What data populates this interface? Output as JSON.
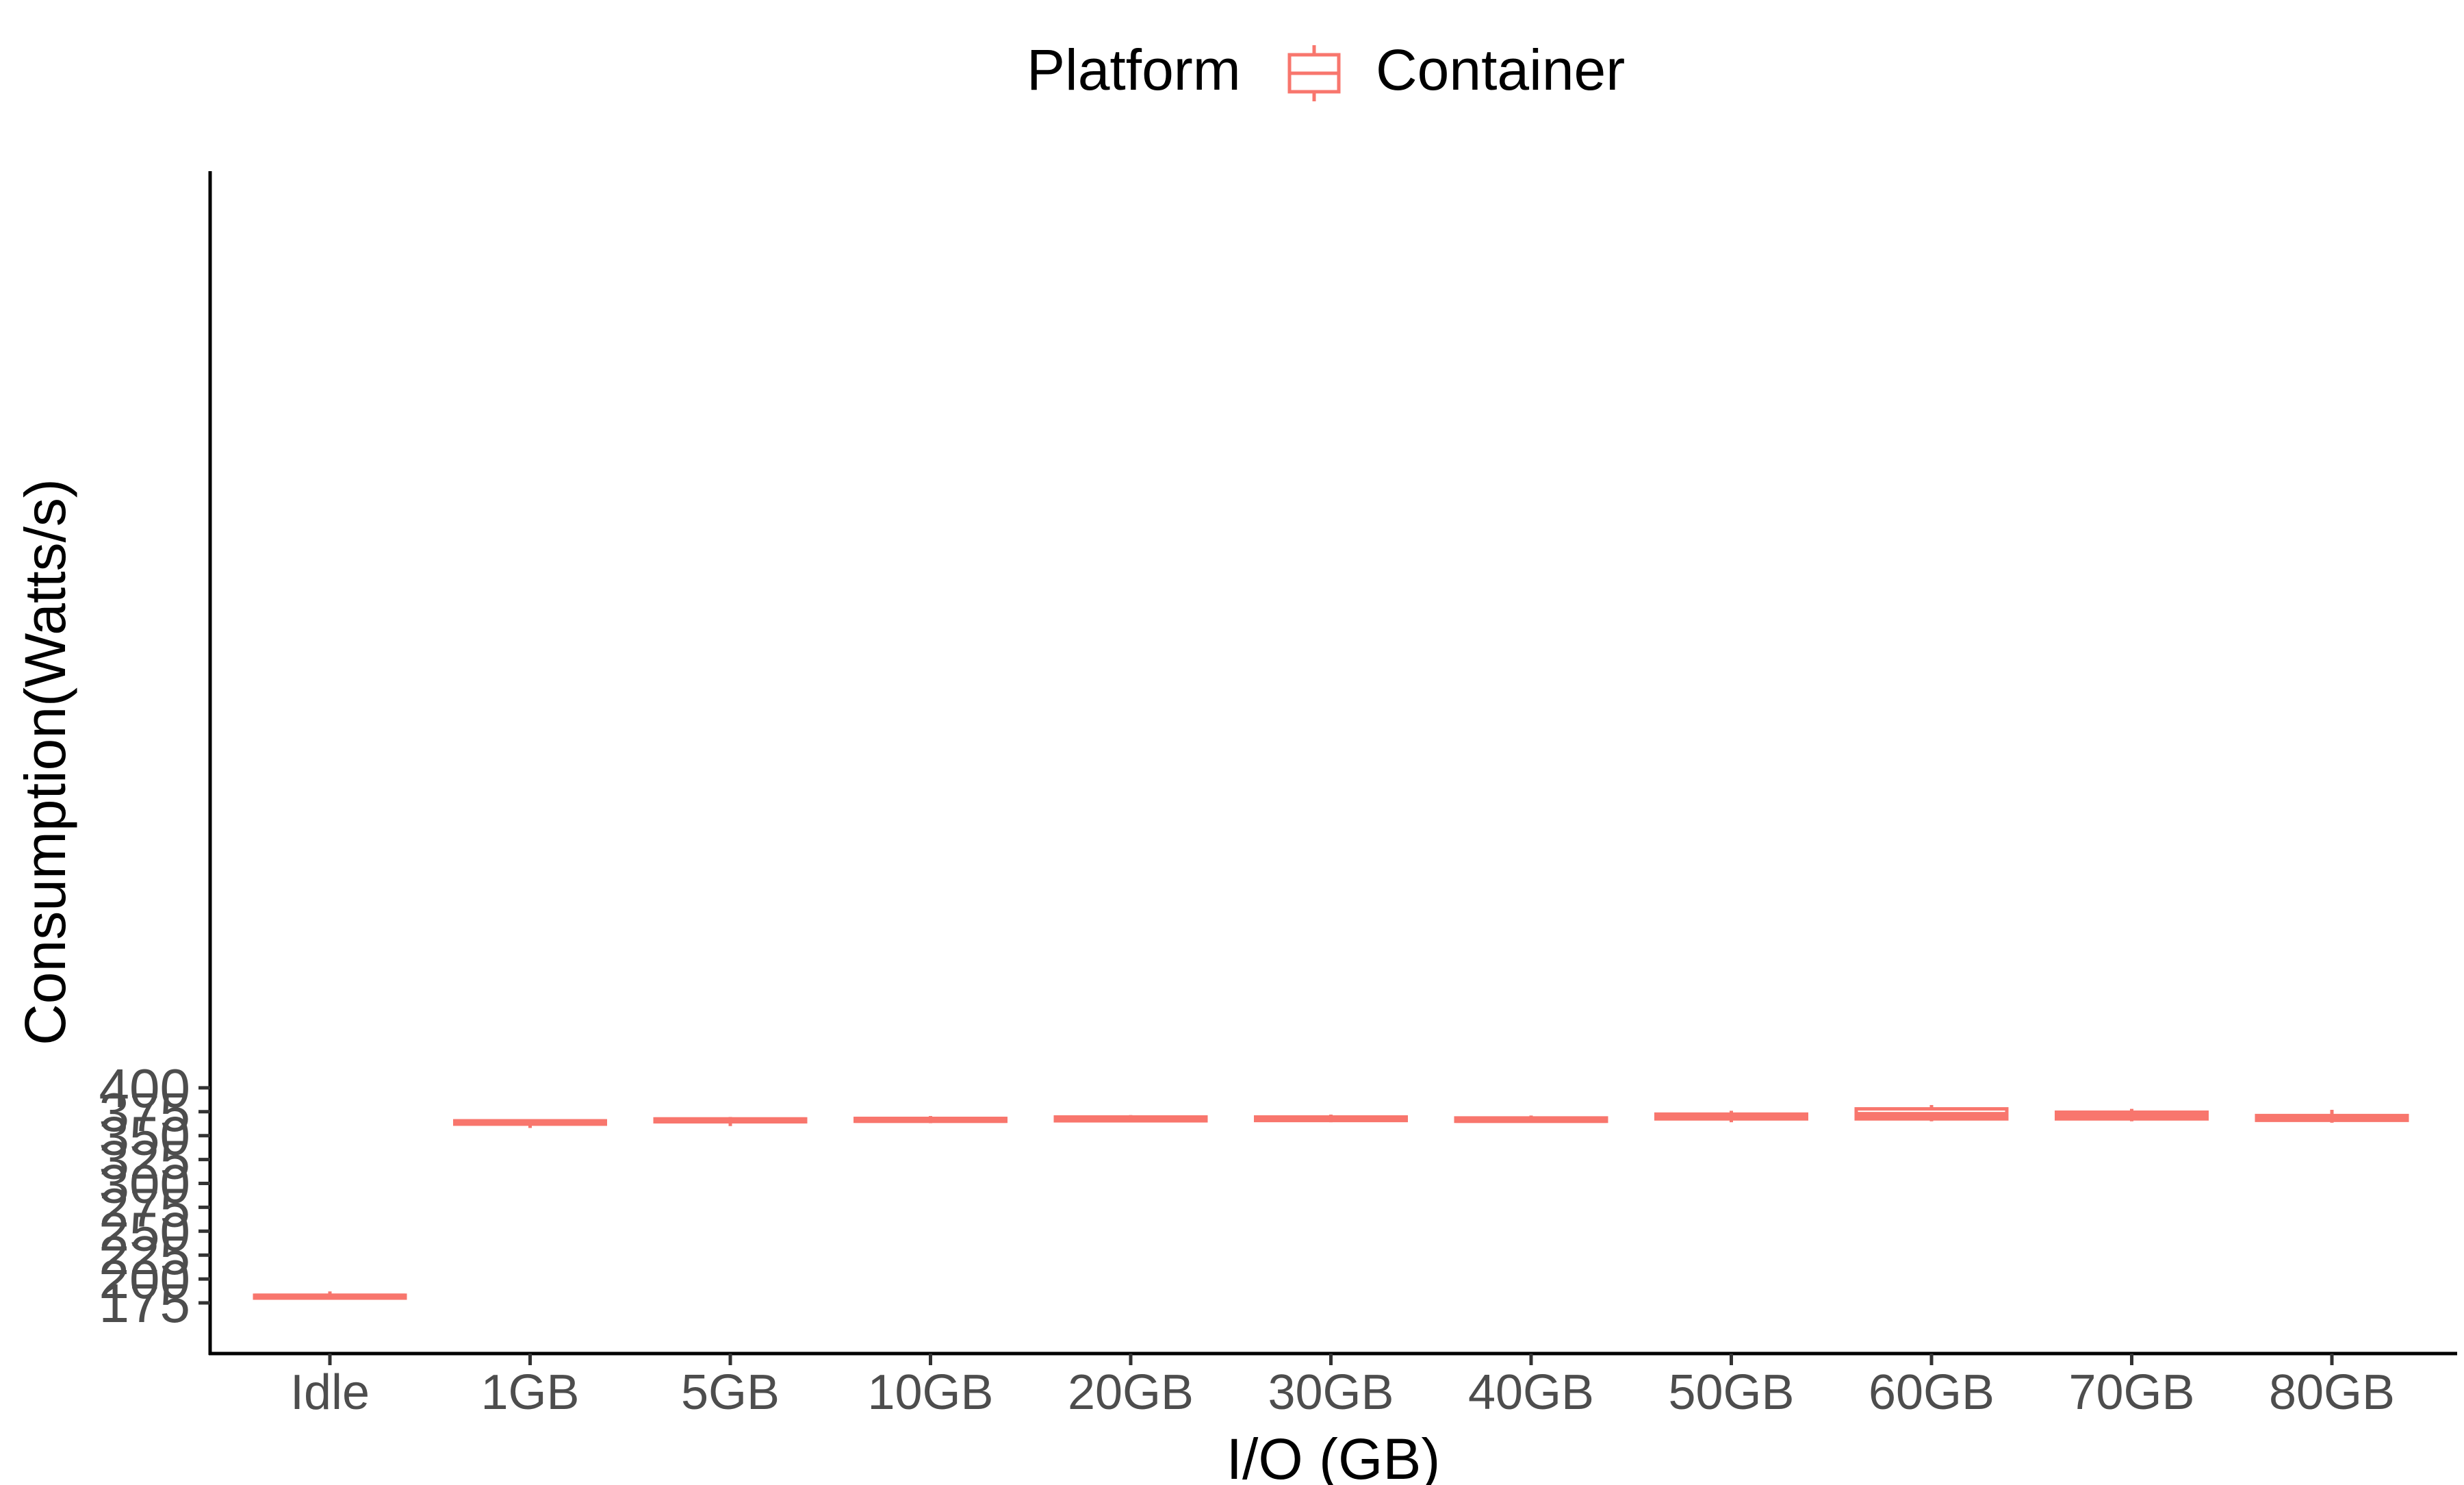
{
  "chart_data": {
    "type": "boxplot",
    "title": "",
    "xlabel": "I/O (GB)",
    "ylabel": "Consumption(Watts/s)",
    "ylim": [
      164,
      408
    ],
    "yticks": [
      175,
      200,
      225,
      250,
      275,
      300,
      325,
      350,
      375,
      400
    ],
    "grid": false,
    "legend": {
      "title": "Platform",
      "placement": "top-center",
      "entries": [
        "Container"
      ]
    },
    "colors": {
      "series": "#F8766D",
      "axis": "#000000",
      "tick_text": "#4d4d4d"
    },
    "categories": [
      "Idle",
      "1GB",
      "5GB",
      "10GB",
      "20GB",
      "30GB",
      "40GB",
      "50GB",
      "60GB",
      "70GB",
      "80GB"
    ],
    "series": [
      {
        "name": "Container",
        "boxes": [
          {
            "category": "Idle",
            "min": 179,
            "q1": 180,
            "median": 181.5,
            "q3": 183,
            "max": 187
          },
          {
            "category": "1GB",
            "min": 358,
            "q1": 362,
            "median": 364,
            "q3": 365.5,
            "max": 367
          },
          {
            "category": "5GB",
            "min": 360,
            "q1": 364.5,
            "median": 366,
            "q3": 367.5,
            "max": 369.5
          },
          {
            "category": "10GB",
            "min": 363,
            "q1": 365,
            "median": 366.5,
            "q3": 368,
            "max": 370.5
          },
          {
            "category": "20GB",
            "min": 364,
            "q1": 365.5,
            "median": 367.5,
            "q3": 369.5,
            "max": 371.5
          },
          {
            "category": "30GB",
            "min": 364,
            "q1": 365.8,
            "median": 367.5,
            "q3": 369.5,
            "max": 372
          },
          {
            "category": "40GB",
            "min": 363.5,
            "q1": 365,
            "median": 366.5,
            "q3": 368.5,
            "max": 371
          },
          {
            "category": "50GB",
            "min": 364,
            "q1": 367.5,
            "median": 370,
            "q3": 372.5,
            "max": 376
          },
          {
            "category": "60GB",
            "min": 365,
            "q1": 367.5,
            "median": 371.5,
            "q3": 378,
            "max": 382
          },
          {
            "category": "70GB",
            "min": 365,
            "q1": 367.5,
            "median": 370.5,
            "q3": 374.5,
            "max": 378
          },
          {
            "category": "80GB",
            "min": 363.5,
            "q1": 366,
            "median": 368,
            "q3": 371,
            "max": 377
          }
        ]
      }
    ]
  }
}
